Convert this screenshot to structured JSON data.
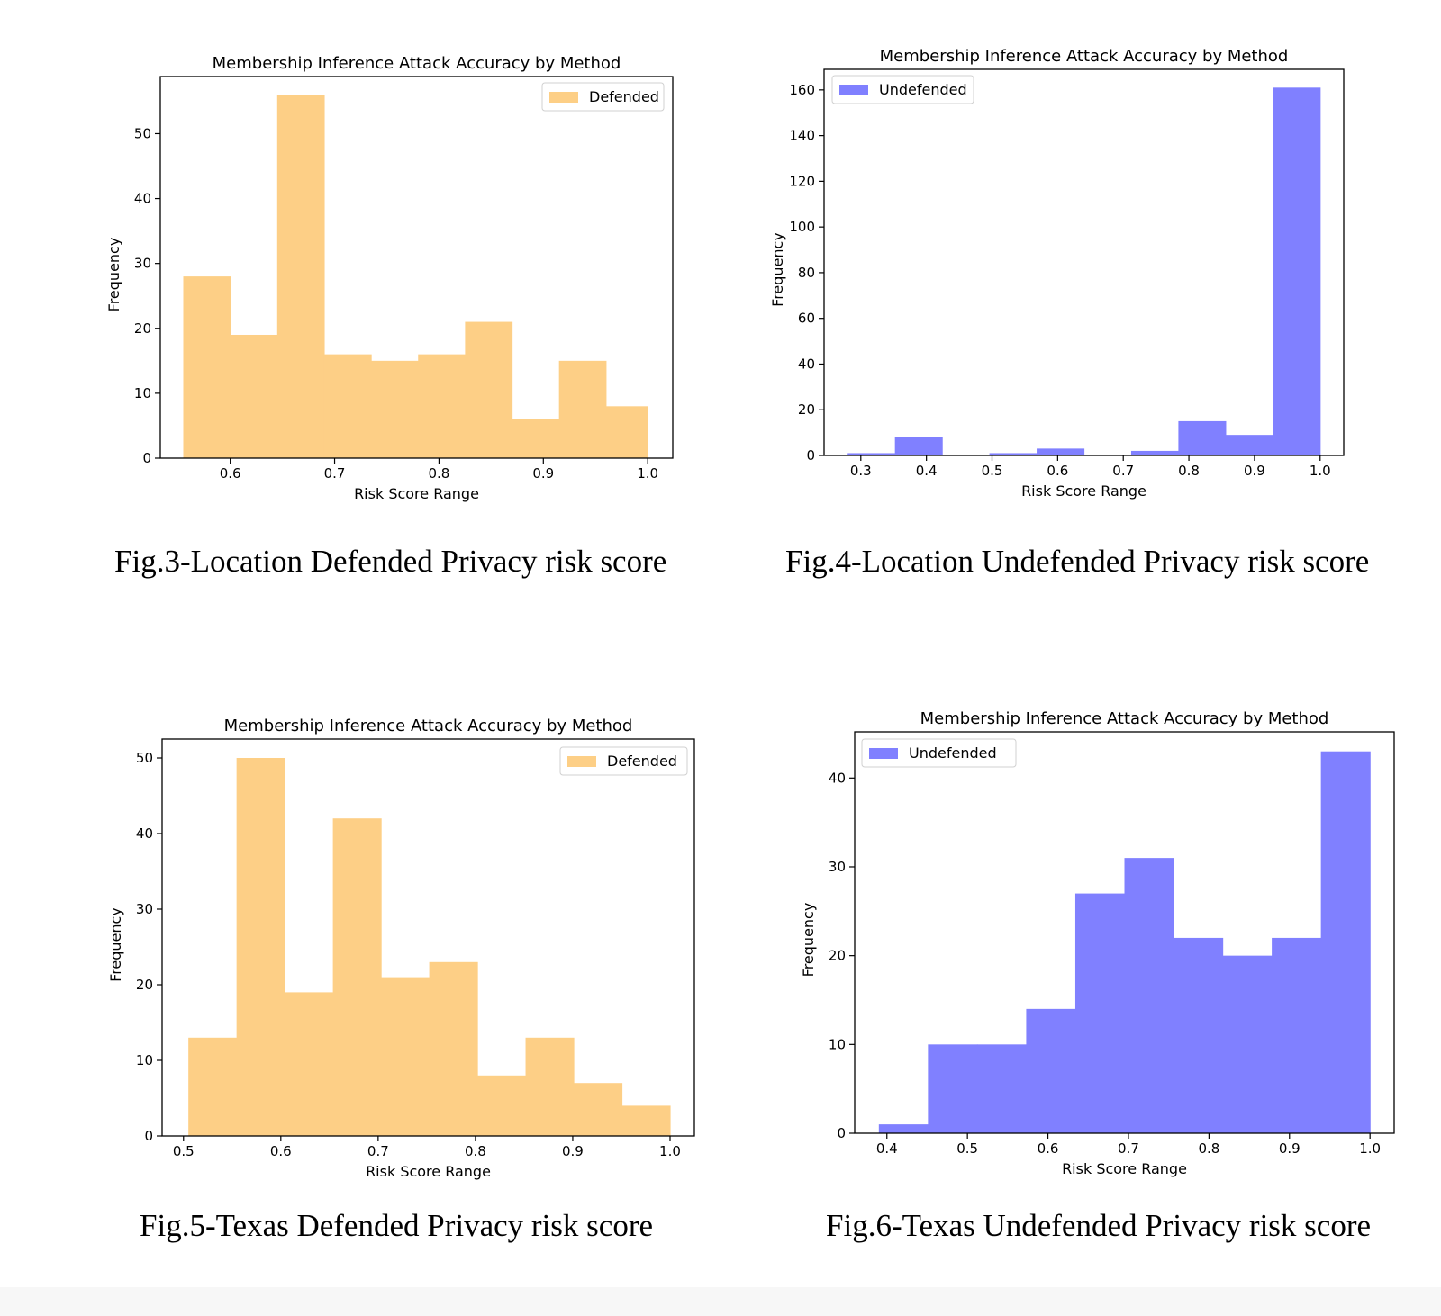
{
  "chart_data": [
    {
      "type": "bar",
      "title": "Membership Inference Attack Accuracy by Method",
      "xlabel": "Risk Score Range",
      "ylabel": "Frequency",
      "legend": [
        "Defended"
      ],
      "legend_position": "top-right",
      "color": "#fdcf86",
      "bin_edges": [
        0.555,
        0.6,
        0.645,
        0.69,
        0.735,
        0.78,
        0.825,
        0.87,
        0.915,
        0.96,
        1.0
      ],
      "values": [
        28,
        19,
        56,
        16,
        15,
        16,
        21,
        6,
        15,
        8
      ],
      "xlim": [
        0.533,
        1.024
      ],
      "ylim": [
        0,
        58.8
      ],
      "xticks": [
        0.6,
        0.7,
        0.8,
        0.9,
        1.0
      ],
      "xtick_labels": [
        "0.6",
        "0.7",
        "0.8",
        "0.9",
        "1.0"
      ],
      "yticks": [
        0,
        10,
        20,
        30,
        40,
        50
      ],
      "ytick_labels": [
        "0",
        "10",
        "20",
        "30",
        "40",
        "50"
      ],
      "grid": false
    },
    {
      "type": "bar",
      "title": "Membership Inference Attack Accuracy by Method",
      "xlabel": "Risk Score Range",
      "ylabel": "Frequency",
      "legend": [
        "Undefended"
      ],
      "legend_position": "top-left",
      "color": "#8080ff",
      "bin_edges": [
        0.28,
        0.352,
        0.424,
        0.496,
        0.568,
        0.64,
        0.712,
        0.784,
        0.856,
        0.928,
        1.0
      ],
      "values": [
        1,
        8,
        0,
        1,
        3,
        0,
        2,
        15,
        9,
        161
      ],
      "xlim": [
        0.244,
        1.036
      ],
      "ylim": [
        0,
        169
      ],
      "xticks": [
        0.3,
        0.4,
        0.5,
        0.6,
        0.7,
        0.8,
        0.9,
        1.0
      ],
      "xtick_labels": [
        "0.3",
        "0.4",
        "0.5",
        "0.6",
        "0.7",
        "0.8",
        "0.9",
        "1.0"
      ],
      "yticks": [
        0,
        20,
        40,
        60,
        80,
        100,
        120,
        140,
        160
      ],
      "ytick_labels": [
        "0",
        "20",
        "40",
        "60",
        "80",
        "100",
        "120",
        "140",
        "160"
      ],
      "grid": false
    },
    {
      "type": "bar",
      "title": "Membership Inference Attack Accuracy by Method",
      "xlabel": "Risk Score Range",
      "ylabel": "Frequency",
      "legend": [
        "Defended"
      ],
      "legend_position": "top-right",
      "color": "#fdcf86",
      "bin_edges": [
        0.505,
        0.5545,
        0.604,
        0.6535,
        0.703,
        0.7525,
        0.802,
        0.8515,
        0.901,
        0.9505,
        1.0
      ],
      "values": [
        13,
        50,
        19,
        42,
        21,
        23,
        8,
        13,
        7,
        4
      ],
      "xlim": [
        0.478,
        1.025
      ],
      "ylim": [
        0,
        52.5
      ],
      "xticks": [
        0.5,
        0.6,
        0.7,
        0.8,
        0.9,
        1.0
      ],
      "xtick_labels": [
        "0.5",
        "0.6",
        "0.7",
        "0.8",
        "0.9",
        "1.0"
      ],
      "yticks": [
        0,
        10,
        20,
        30,
        40,
        50
      ],
      "ytick_labels": [
        "0",
        "10",
        "20",
        "30",
        "40",
        "50"
      ],
      "grid": false
    },
    {
      "type": "bar",
      "title": "Membership Inference Attack Accuracy by Method",
      "xlabel": "Risk Score Range",
      "ylabel": "Frequency",
      "legend": [
        "Undefended"
      ],
      "legend_position": "top-left",
      "color": "#8080ff",
      "bin_edges": [
        0.39,
        0.451,
        0.512,
        0.573,
        0.634,
        0.695,
        0.756,
        0.817,
        0.878,
        0.939,
        1.0
      ],
      "values": [
        1,
        10,
        10,
        14,
        27,
        31,
        22,
        20,
        22,
        43
      ],
      "xlim": [
        0.36,
        1.03
      ],
      "ylim": [
        0,
        45.2
      ],
      "xticks": [
        0.4,
        0.5,
        0.6,
        0.7,
        0.8,
        0.9,
        1.0
      ],
      "xtick_labels": [
        "0.4",
        "0.5",
        "0.6",
        "0.7",
        "0.8",
        "0.9",
        "1.0"
      ],
      "yticks": [
        0,
        10,
        20,
        30,
        40
      ],
      "ytick_labels": [
        "0",
        "10",
        "20",
        "30",
        "40"
      ],
      "grid": false
    }
  ],
  "captions": {
    "fig3": "Fig.3-Location Defended Privacy risk score",
    "fig4": "Fig.4-Location Undefended Privacy risk score",
    "fig5": "Fig.5-Texas Defended Privacy risk score",
    "fig6": "Fig.6-Texas Undefended Privacy risk score"
  }
}
